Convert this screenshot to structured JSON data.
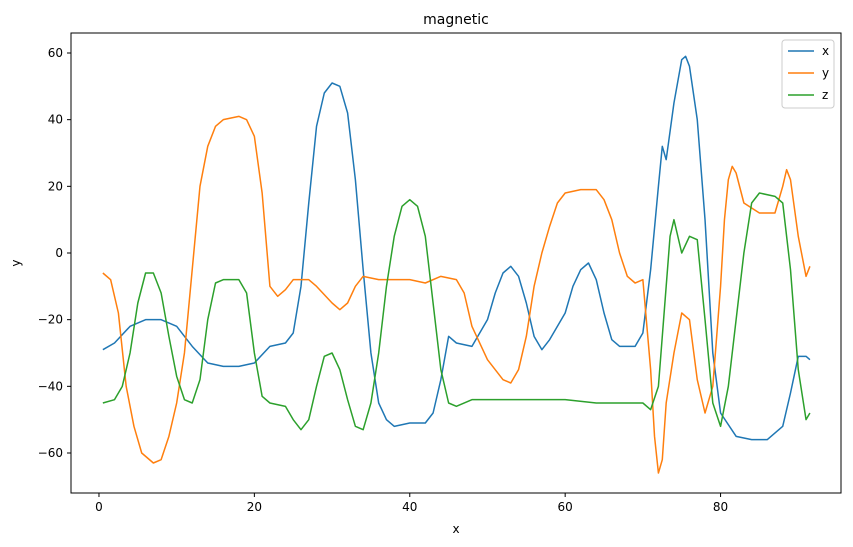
{
  "chart_data": {
    "type": "line",
    "title": "magnetic",
    "xlabel": "x",
    "ylabel": "y",
    "xlim": [
      -3.6,
      95.5
    ],
    "ylim": [
      -72,
      66
    ],
    "xticks": [
      0,
      20,
      40,
      60,
      80
    ],
    "yticks": [
      -60,
      -40,
      -20,
      0,
      20,
      40,
      60
    ],
    "grid": false,
    "legend": "top-right",
    "series": [
      {
        "name": "x",
        "color": "#1f77b4",
        "points": [
          [
            0.5,
            -29
          ],
          [
            2,
            -27
          ],
          [
            4,
            -22
          ],
          [
            6,
            -20
          ],
          [
            8,
            -20
          ],
          [
            10,
            -22
          ],
          [
            12,
            -28
          ],
          [
            14,
            -33
          ],
          [
            16,
            -34
          ],
          [
            18,
            -34
          ],
          [
            20,
            -33
          ],
          [
            22,
            -28
          ],
          [
            24,
            -27
          ],
          [
            25,
            -24
          ],
          [
            26,
            -10
          ],
          [
            27,
            15
          ],
          [
            28,
            38
          ],
          [
            29,
            48
          ],
          [
            30,
            51
          ],
          [
            31,
            50
          ],
          [
            32,
            42
          ],
          [
            33,
            22
          ],
          [
            34,
            -5
          ],
          [
            35,
            -30
          ],
          [
            36,
            -45
          ],
          [
            37,
            -50
          ],
          [
            38,
            -52
          ],
          [
            40,
            -51
          ],
          [
            42,
            -51
          ],
          [
            43,
            -48
          ],
          [
            44,
            -38
          ],
          [
            45,
            -25
          ],
          [
            46,
            -27
          ],
          [
            48,
            -28
          ],
          [
            50,
            -20
          ],
          [
            51,
            -12
          ],
          [
            52,
            -6
          ],
          [
            53,
            -4
          ],
          [
            54,
            -7
          ],
          [
            55,
            -15
          ],
          [
            56,
            -25
          ],
          [
            57,
            -29
          ],
          [
            58,
            -26
          ],
          [
            60,
            -18
          ],
          [
            61,
            -10
          ],
          [
            62,
            -5
          ],
          [
            63,
            -3
          ],
          [
            64,
            -8
          ],
          [
            65,
            -18
          ],
          [
            66,
            -26
          ],
          [
            67,
            -28
          ],
          [
            69,
            -28
          ],
          [
            70,
            -24
          ],
          [
            71,
            -5
          ],
          [
            72,
            20
          ],
          [
            72.5,
            32
          ],
          [
            73,
            28
          ],
          [
            74,
            45
          ],
          [
            75,
            58
          ],
          [
            75.5,
            59
          ],
          [
            76,
            56
          ],
          [
            77,
            40
          ],
          [
            78,
            10
          ],
          [
            79,
            -30
          ],
          [
            80,
            -48
          ],
          [
            82,
            -55
          ],
          [
            84,
            -56
          ],
          [
            86,
            -56
          ],
          [
            88,
            -52
          ],
          [
            89,
            -42
          ],
          [
            90,
            -31
          ],
          [
            91,
            -31
          ],
          [
            91.5,
            -32
          ]
        ]
      },
      {
        "name": "y",
        "color": "#ff7f0e",
        "points": [
          [
            0.5,
            -6
          ],
          [
            1.5,
            -8
          ],
          [
            2.5,
            -18
          ],
          [
            3.5,
            -40
          ],
          [
            4.5,
            -52
          ],
          [
            5.5,
            -60
          ],
          [
            7,
            -63
          ],
          [
            8,
            -62
          ],
          [
            9,
            -55
          ],
          [
            10,
            -45
          ],
          [
            11,
            -30
          ],
          [
            12,
            -5
          ],
          [
            13,
            20
          ],
          [
            14,
            32
          ],
          [
            15,
            38
          ],
          [
            16,
            40
          ],
          [
            18,
            41
          ],
          [
            19,
            40
          ],
          [
            20,
            35
          ],
          [
            21,
            18
          ],
          [
            22,
            -10
          ],
          [
            23,
            -13
          ],
          [
            24,
            -11
          ],
          [
            25,
            -8
          ],
          [
            27,
            -8
          ],
          [
            28,
            -10
          ],
          [
            30,
            -15
          ],
          [
            31,
            -17
          ],
          [
            32,
            -15
          ],
          [
            33,
            -10
          ],
          [
            34,
            -7
          ],
          [
            36,
            -8
          ],
          [
            38,
            -8
          ],
          [
            40,
            -8
          ],
          [
            42,
            -9
          ],
          [
            44,
            -7
          ],
          [
            46,
            -8
          ],
          [
            47,
            -12
          ],
          [
            48,
            -22
          ],
          [
            50,
            -32
          ],
          [
            52,
            -38
          ],
          [
            53,
            -39
          ],
          [
            54,
            -35
          ],
          [
            55,
            -25
          ],
          [
            56,
            -10
          ],
          [
            57,
            0
          ],
          [
            58,
            8
          ],
          [
            59,
            15
          ],
          [
            60,
            18
          ],
          [
            62,
            19
          ],
          [
            64,
            19
          ],
          [
            65,
            16
          ],
          [
            66,
            10
          ],
          [
            67,
            0
          ],
          [
            68,
            -7
          ],
          [
            69,
            -9
          ],
          [
            70,
            -8
          ],
          [
            71,
            -35
          ],
          [
            71.5,
            -55
          ],
          [
            72,
            -66
          ],
          [
            72.5,
            -62
          ],
          [
            73,
            -45
          ],
          [
            74,
            -30
          ],
          [
            75,
            -18
          ],
          [
            76,
            -20
          ],
          [
            77,
            -38
          ],
          [
            78,
            -48
          ],
          [
            79,
            -40
          ],
          [
            80,
            -10
          ],
          [
            80.5,
            10
          ],
          [
            81,
            22
          ],
          [
            81.5,
            26
          ],
          [
            82,
            24
          ],
          [
            83,
            15
          ],
          [
            85,
            12
          ],
          [
            87,
            12
          ],
          [
            88,
            20
          ],
          [
            88.5,
            25
          ],
          [
            89,
            22
          ],
          [
            90,
            5
          ],
          [
            91,
            -7
          ],
          [
            91.5,
            -4
          ]
        ]
      },
      {
        "name": "z",
        "color": "#2ca02c",
        "points": [
          [
            0.5,
            -45
          ],
          [
            2,
            -44
          ],
          [
            3,
            -40
          ],
          [
            4,
            -30
          ],
          [
            5,
            -15
          ],
          [
            6,
            -6
          ],
          [
            7,
            -6
          ],
          [
            8,
            -12
          ],
          [
            9,
            -25
          ],
          [
            10,
            -37
          ],
          [
            11,
            -44
          ],
          [
            12,
            -45
          ],
          [
            13,
            -38
          ],
          [
            14,
            -20
          ],
          [
            15,
            -9
          ],
          [
            16,
            -8
          ],
          [
            18,
            -8
          ],
          [
            19,
            -12
          ],
          [
            20,
            -30
          ],
          [
            21,
            -43
          ],
          [
            22,
            -45
          ],
          [
            24,
            -46
          ],
          [
            25,
            -50
          ],
          [
            26,
            -53
          ],
          [
            27,
            -50
          ],
          [
            28,
            -40
          ],
          [
            29,
            -31
          ],
          [
            30,
            -30
          ],
          [
            31,
            -35
          ],
          [
            32,
            -44
          ],
          [
            33,
            -52
          ],
          [
            34,
            -53
          ],
          [
            35,
            -45
          ],
          [
            36,
            -30
          ],
          [
            37,
            -10
          ],
          [
            38,
            5
          ],
          [
            39,
            14
          ],
          [
            40,
            16
          ],
          [
            41,
            14
          ],
          [
            42,
            5
          ],
          [
            43,
            -15
          ],
          [
            44,
            -35
          ],
          [
            45,
            -45
          ],
          [
            46,
            -46
          ],
          [
            48,
            -44
          ],
          [
            52,
            -44
          ],
          [
            56,
            -44
          ],
          [
            60,
            -44
          ],
          [
            64,
            -45
          ],
          [
            68,
            -45
          ],
          [
            70,
            -45
          ],
          [
            71,
            -47
          ],
          [
            72,
            -40
          ],
          [
            73,
            -10
          ],
          [
            73.5,
            5
          ],
          [
            74,
            10
          ],
          [
            75,
            0
          ],
          [
            76,
            5
          ],
          [
            77,
            4
          ],
          [
            78,
            -20
          ],
          [
            79,
            -45
          ],
          [
            80,
            -52
          ],
          [
            81,
            -40
          ],
          [
            82,
            -20
          ],
          [
            83,
            0
          ],
          [
            84,
            15
          ],
          [
            85,
            18
          ],
          [
            87,
            17
          ],
          [
            88,
            15
          ],
          [
            89,
            -5
          ],
          [
            90,
            -35
          ],
          [
            91,
            -50
          ],
          [
            91.5,
            -48
          ]
        ]
      }
    ]
  }
}
